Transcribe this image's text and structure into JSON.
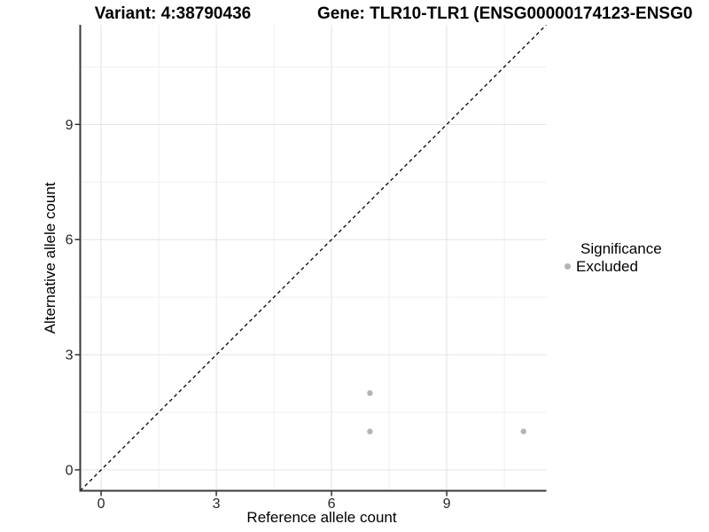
{
  "titles": {
    "variant": "Variant: 4:38790436",
    "gene": "Gene: TLR10-TLR1 (ENSG00000174123-ENSG0"
  },
  "axes": {
    "x_label": "Reference allele count",
    "y_label": "Alternative allele count"
  },
  "legend": {
    "title": "Significance",
    "entries": [
      {
        "label": "Excluded",
        "color": "#b4b4b4"
      }
    ]
  },
  "colors": {
    "point": "#b4b4b4",
    "axis_line": "#383838",
    "tick_mark": "#333333",
    "tick_text": "#262626",
    "grid_major": "#e3e3e3",
    "grid_minor": "#efefef",
    "identity_line": "#111111",
    "background": "#ffffff"
  },
  "chart_data": {
    "type": "scatter",
    "title": "Variant: 4:38790436  /  Gene: TLR10-TLR1 (ENSG00000174123-ENSG0...)",
    "xlabel": "Reference allele count",
    "ylabel": "Alternative allele count",
    "x_ticks": [
      0,
      3,
      6,
      9
    ],
    "y_ticks": [
      0,
      3,
      6,
      9
    ],
    "xlim": [
      -0.545,
      11.595
    ],
    "ylim": [
      -0.545,
      11.595
    ],
    "grid": "major and minor, light gray on white",
    "legend_position": "right",
    "identity_line": {
      "equation": "y = x",
      "style": "dashed",
      "color": "#111111"
    },
    "series": [
      {
        "name": "Excluded",
        "color": "#b4b4b4",
        "points": [
          {
            "x": 7,
            "y": 2
          },
          {
            "x": 7,
            "y": 1
          },
          {
            "x": 11,
            "y": 1
          }
        ]
      }
    ]
  }
}
